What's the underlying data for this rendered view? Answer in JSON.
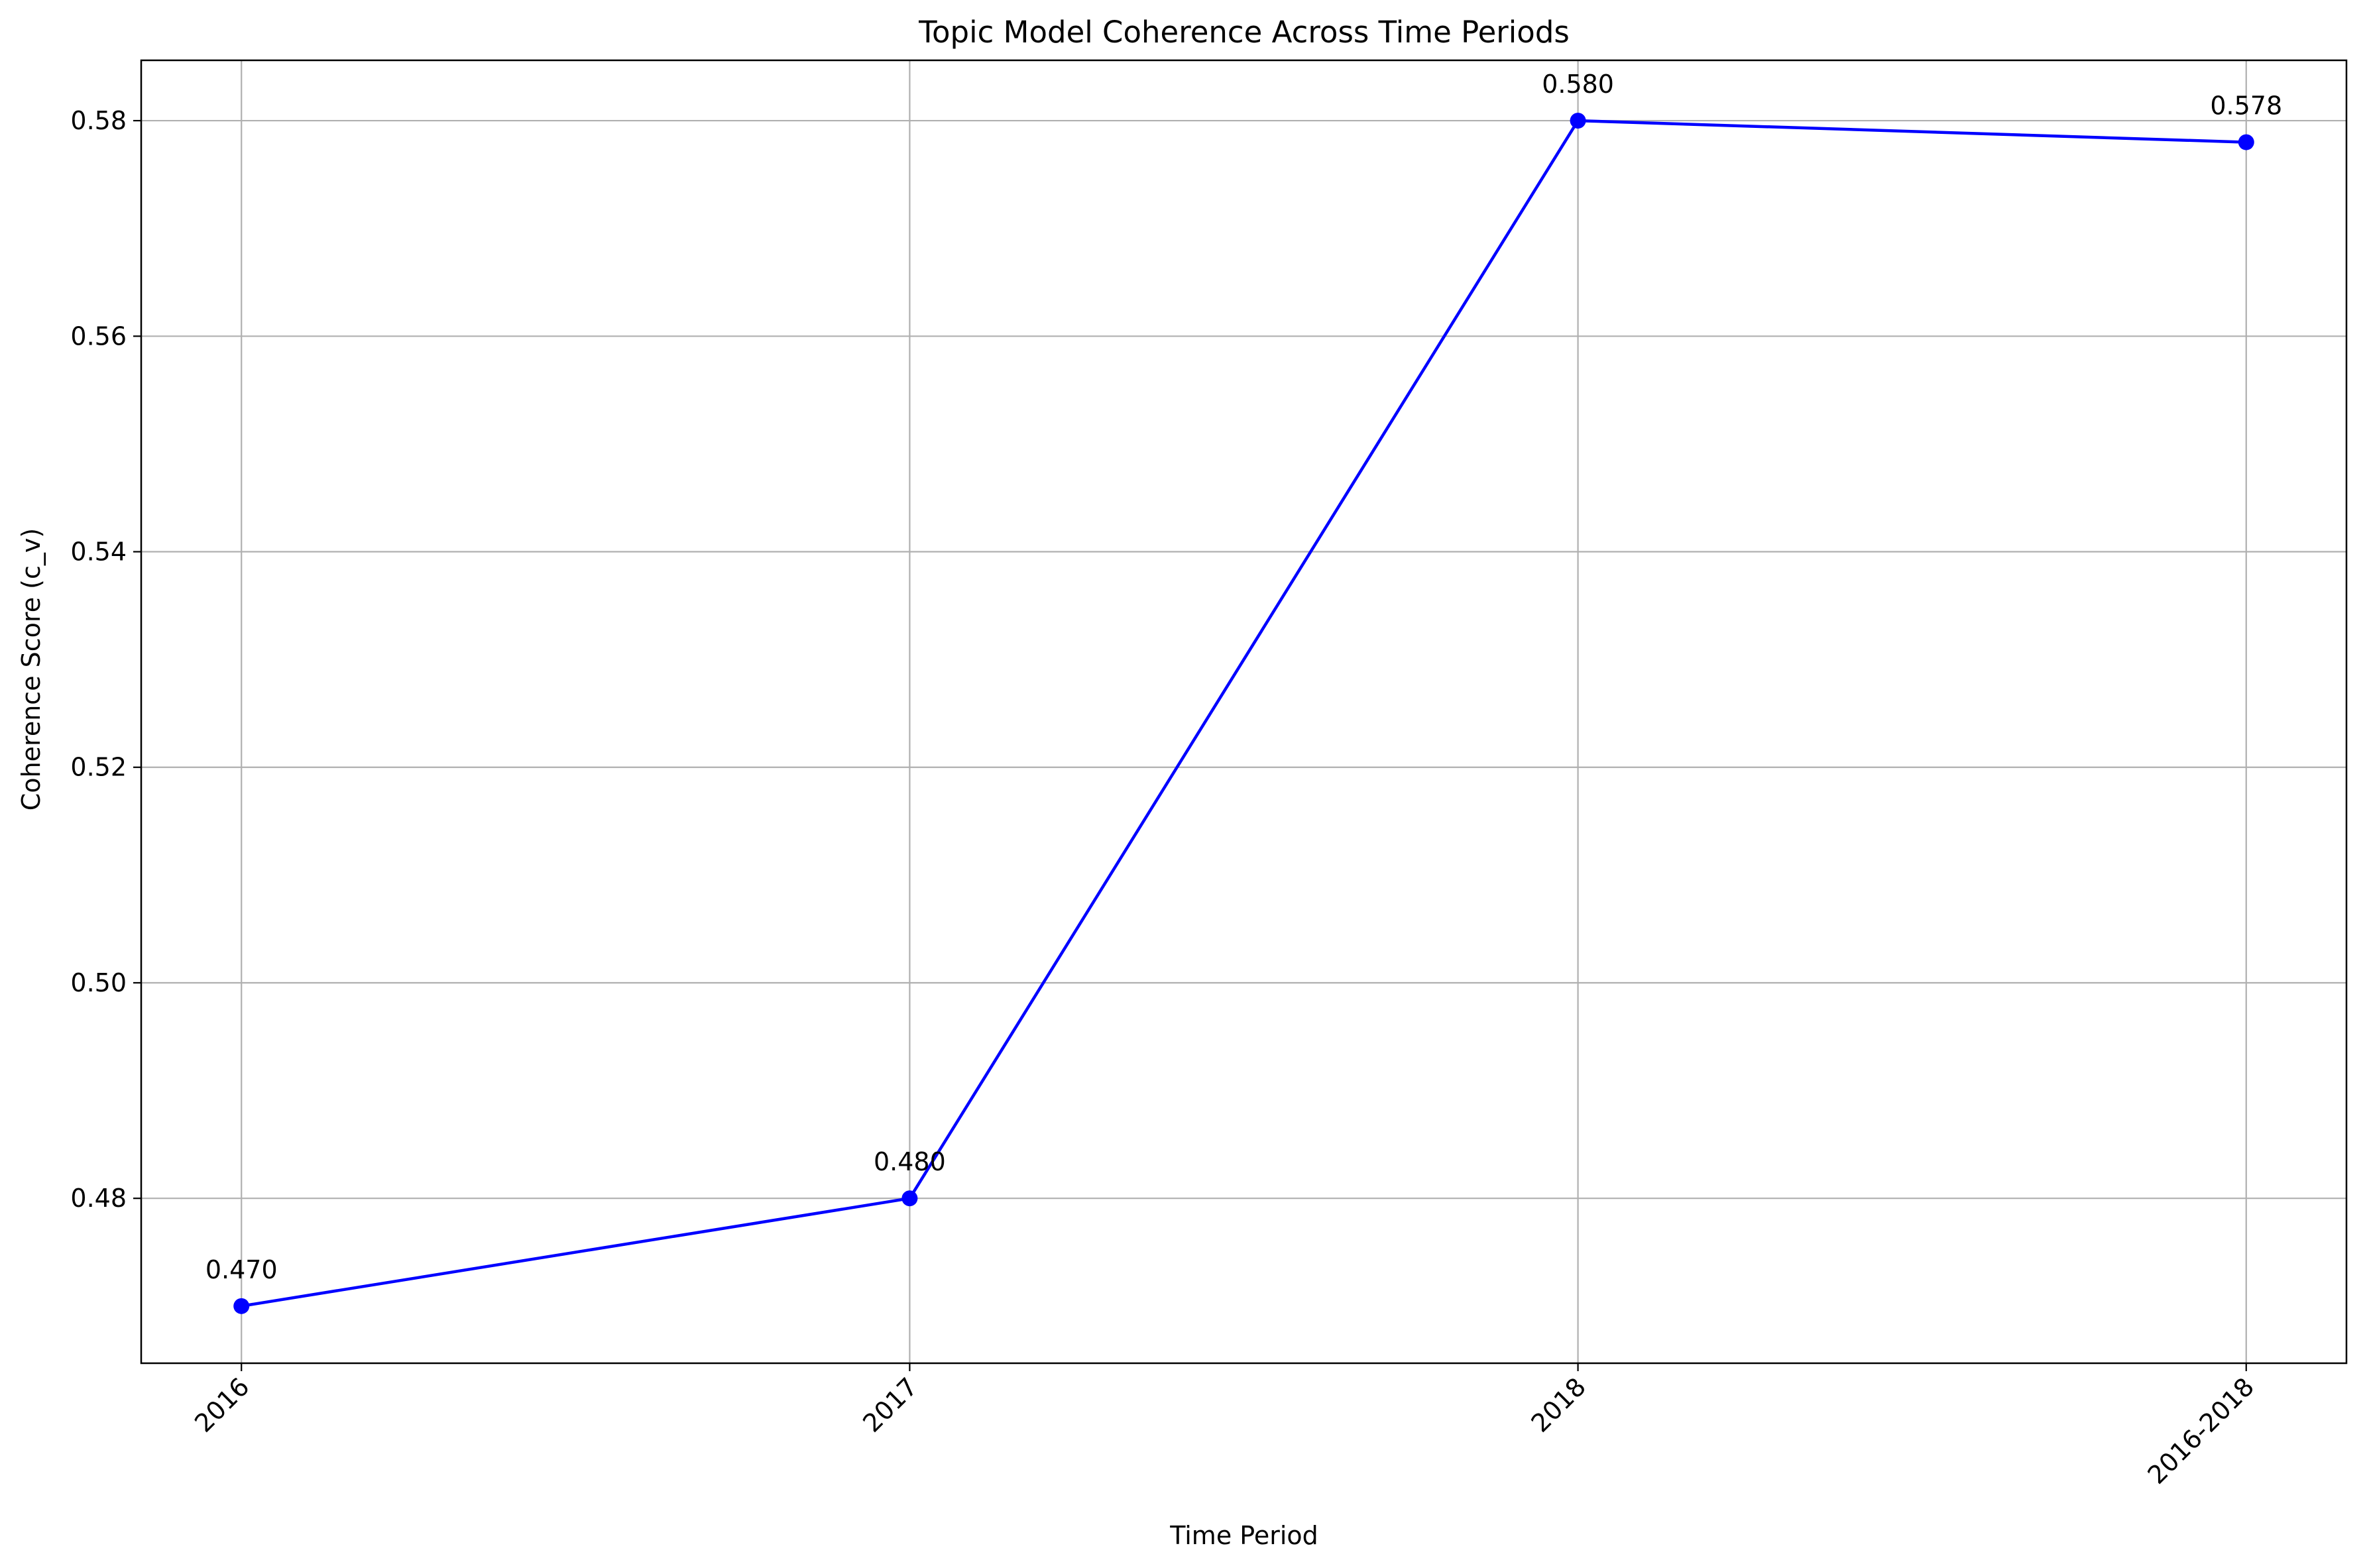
{
  "chart_data": {
    "type": "line",
    "title": "Topic Model Coherence Across Time Periods",
    "xlabel": "Time Period",
    "ylabel": "Coherence Score (c_v)",
    "categories": [
      "2016",
      "2017",
      "2018",
      "2016-2018"
    ],
    "series": [
      {
        "values": [
          0.47,
          0.48,
          0.58,
          0.578
        ],
        "data_labels": [
          "0.470",
          "0.480",
          "0.580",
          "0.578"
        ],
        "color": "#0000ff",
        "marker": "circle"
      }
    ],
    "yticks": [
      0.48,
      0.5,
      0.52,
      0.54,
      0.56,
      0.58
    ],
    "ytick_labels": [
      "0.48",
      "0.50",
      "0.52",
      "0.54",
      "0.56",
      "0.58"
    ],
    "ylim": [
      0.4647,
      0.5856
    ],
    "grid": true,
    "xtick_rotation_deg": 45
  }
}
